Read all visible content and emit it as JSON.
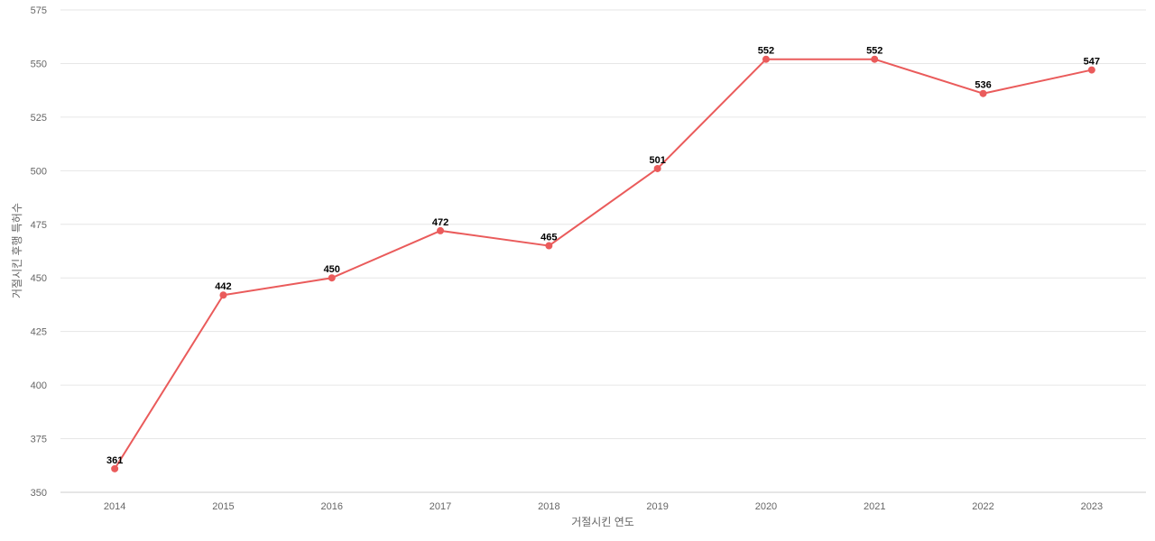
{
  "chart_data": {
    "type": "line",
    "title": "",
    "xlabel": "거절시킨 연도",
    "ylabel": "거절시킨 후행 특허수",
    "categories": [
      "2014",
      "2015",
      "2016",
      "2017",
      "2018",
      "2019",
      "2020",
      "2021",
      "2022",
      "2023"
    ],
    "series": [
      {
        "values": [
          361,
          442,
          450,
          472,
          465,
          501,
          552,
          552,
          536,
          547
        ],
        "color": "#ea5b5b"
      }
    ],
    "ylim": [
      350,
      575
    ],
    "yticks": [
      350,
      375,
      400,
      425,
      450,
      475,
      500,
      525,
      550,
      575
    ],
    "grid": true,
    "legend": "none",
    "data_labels": true
  }
}
